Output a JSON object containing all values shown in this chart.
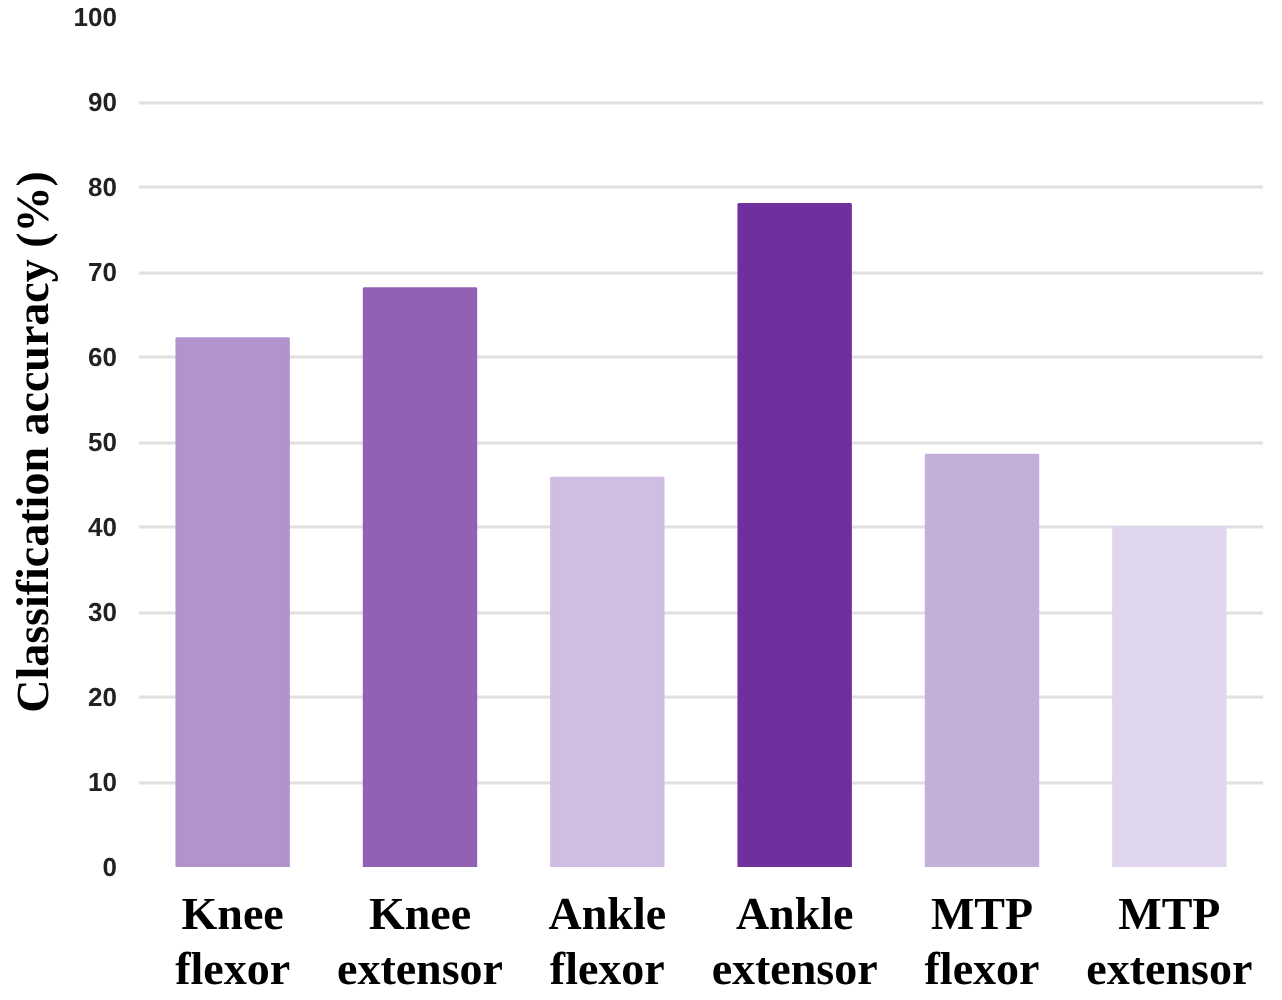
{
  "chart_data": {
    "type": "bar",
    "ylabel": "Classification accuracy (%)",
    "categories": [
      "Knee flexor",
      "Knee extensor",
      "Ankle flexor",
      "Ankle extensor",
      "MTP flexor",
      "MTP extensor"
    ],
    "values": [
      62.2,
      68.1,
      45.8,
      78,
      48.5,
      40
    ],
    "colors": [
      "#b193ce",
      "#9161b4",
      "#cfbde2",
      "#6f309e",
      "#c4afd9",
      "#e0d7ee"
    ],
    "ylim": [
      0,
      100
    ],
    "yticks": [
      0,
      10,
      20,
      30,
      40,
      50,
      60,
      70,
      80,
      90,
      100
    ],
    "grid": "y"
  }
}
